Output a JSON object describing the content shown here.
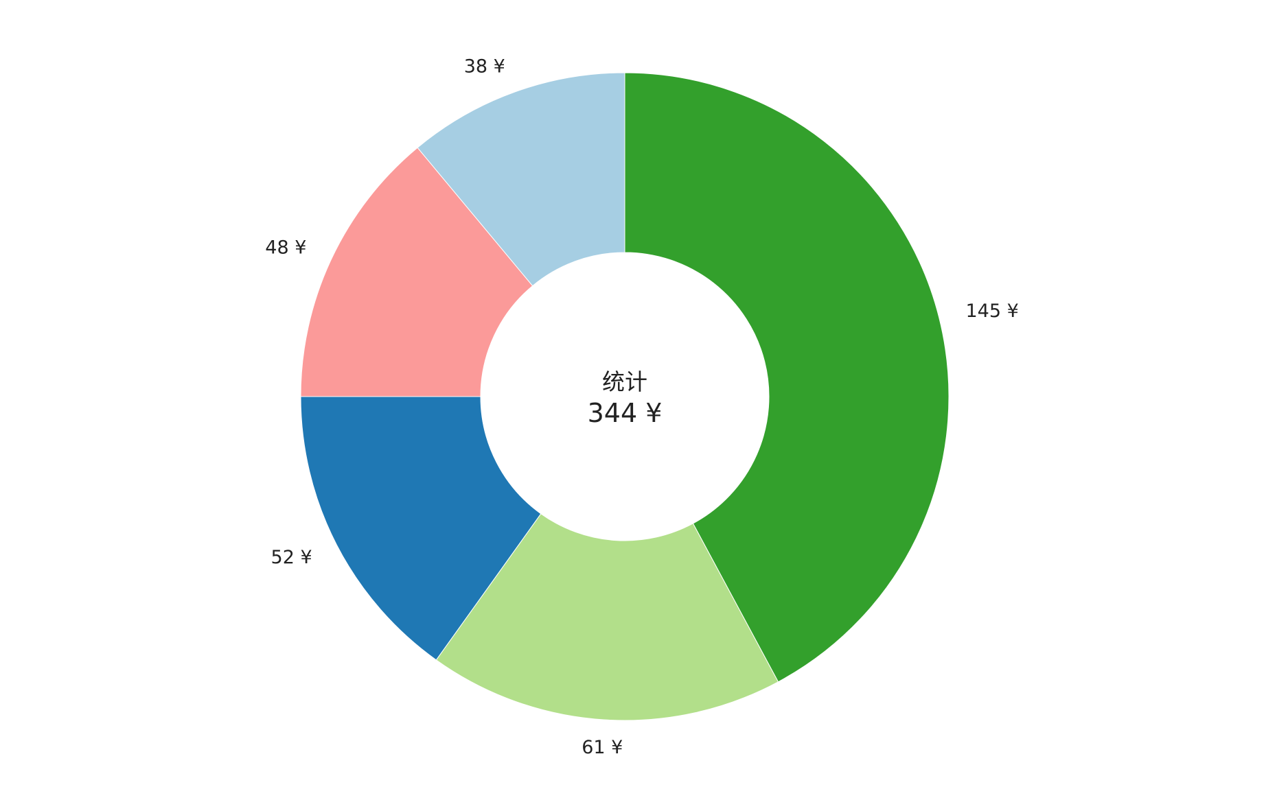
{
  "chart_data": {
    "type": "pie",
    "variant": "donut",
    "currency": "¥",
    "center": {
      "label": "统计",
      "total_text": "344 ¥",
      "total": 344
    },
    "slices": [
      {
        "value": 145,
        "label": "145 ¥",
        "color": "#33a02c"
      },
      {
        "value": 61,
        "label": "61 ¥",
        "color": "#b2df8a"
      },
      {
        "value": 52,
        "label": "52 ¥",
        "color": "#1f78b4"
      },
      {
        "value": 48,
        "label": "48 ¥",
        "color": "#fb9a99"
      },
      {
        "value": 38,
        "label": "38 ¥",
        "color": "#a6cee3"
      }
    ],
    "start": "12 o'clock",
    "direction": "clockwise",
    "legend": "none"
  }
}
